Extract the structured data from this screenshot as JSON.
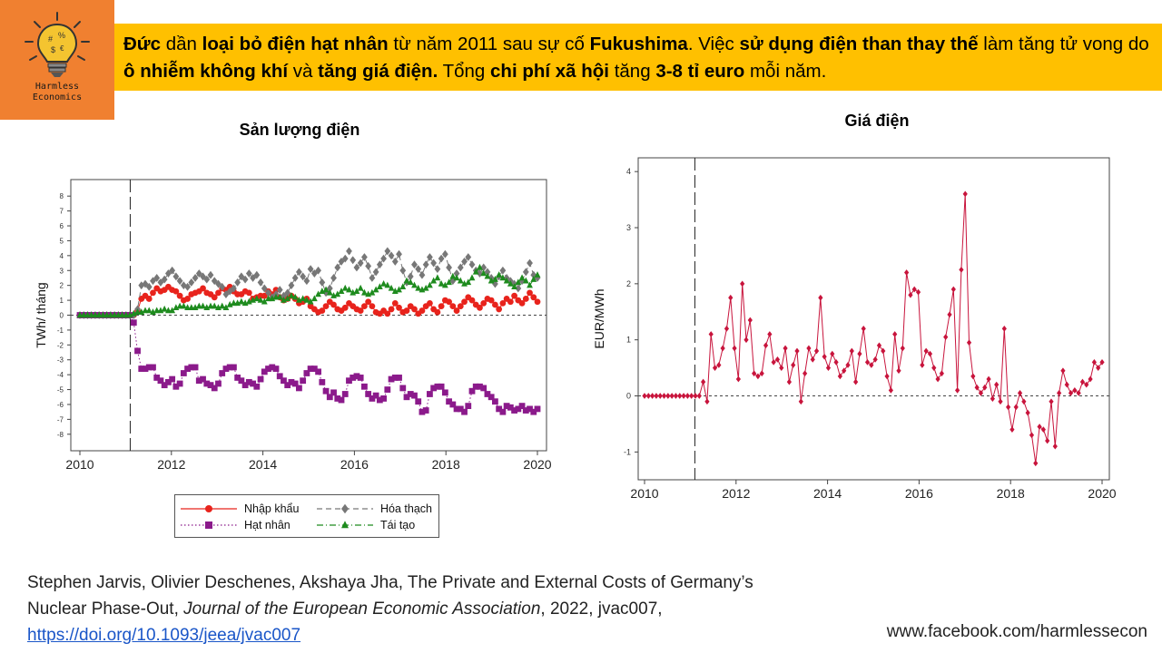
{
  "logo": {
    "line1": "Harmless",
    "line2": "Economics"
  },
  "banner": {
    "segments": [
      {
        "t": "Đức",
        "b": true
      },
      {
        "t": " dần ",
        "b": false
      },
      {
        "t": "loại bỏ điện hạt nhân",
        "b": true
      },
      {
        "t": " từ năm 2011 sau sự cố ",
        "b": false
      },
      {
        "t": "Fukushima",
        "b": true
      },
      {
        "t": ". Việc ",
        "b": false
      },
      {
        "t": "sử dụng điện than thay thế",
        "b": true
      },
      {
        "t": " làm tăng tử vong do ",
        "b": false
      },
      {
        "t": "ô nhiễm không khí",
        "b": true
      },
      {
        "t": " và ",
        "b": false
      },
      {
        "t": "tăng giá điện.",
        "b": true
      },
      {
        "t": " Tổng ",
        "b": false
      },
      {
        "t": "chi phí  xã hội",
        "b": true
      },
      {
        "t": " tăng ",
        "b": false
      },
      {
        "t": "3-8 tỉ euro",
        "b": true
      },
      {
        "t": " mỗi năm.",
        "b": false
      }
    ]
  },
  "citation": {
    "text1": "Stephen Jarvis, Olivier Deschenes, Akshaya Jha, The Private and External Costs of Germany’s Nuclear Phase-Out, ",
    "journal": "Journal of the European Economic Association",
    "text2": ", 2022, jvac007, ",
    "link": "https://doi.org/10.1093/jeea/jvac007"
  },
  "site": "www.facebook.com/harmlessecon",
  "colors": {
    "banner_bg": "#ffc000",
    "logo_bg": "#f08030",
    "import": "#e8231c",
    "fossil": "#777777",
    "nuclear": "#8b1a8b",
    "renewable": "#1e8b1e",
    "price": "#c8143c"
  },
  "chart_data": [
    {
      "type": "line",
      "title": "Sản lượng điện",
      "ylabel": "TWh/ tháng",
      "xlabel": "",
      "xlim": [
        2010,
        2020
      ],
      "ylim": [
        -8.5,
        8.5
      ],
      "x_ticks": [
        "2010",
        "2012",
        "2014",
        "2016",
        "2018",
        "2020"
      ],
      "y_ticks": [
        "8",
        "7",
        "6",
        "5",
        "4",
        "3",
        "2",
        "1",
        "0",
        "-1",
        "-2",
        "-3",
        "-4",
        "-5",
        "-6",
        "-7",
        "-8"
      ],
      "event_line_x": 2011.1,
      "reference_line_y": 0,
      "legend": {
        "position": "bottom"
      },
      "series": [
        {
          "name": "Nhập khẩu",
          "marker": "circle",
          "dash": "solid",
          "values": [
            0,
            0,
            0,
            0,
            0,
            0,
            0,
            0,
            0,
            0,
            0,
            0,
            0,
            0,
            0,
            0.3,
            1.1,
            1.3,
            1.1,
            1.5,
            1.8,
            1.6,
            1.7,
            1.9,
            1.7,
            1.6,
            1.3,
            1.0,
            1.1,
            1.4,
            1.5,
            1.6,
            1.8,
            1.5,
            1.4,
            1.2,
            1.5,
            1.8,
            1.7,
            1.9,
            1.6,
            1.4,
            1.4,
            1.6,
            1.5,
            1.1,
            1.2,
            1.3,
            1.3,
            1.6,
            1.4,
            1.7,
            1.2,
            1.0,
            1.1,
            1.3,
            1.1,
            0.8,
            0.9,
            1.1,
            0.6,
            0.4,
            0.2,
            0.3,
            0.6,
            0.9,
            0.7,
            0.4,
            0.3,
            0.5,
            0.8,
            0.6,
            0.4,
            0.3,
            0.6,
            0.9,
            0.6,
            0.2,
            0.1,
            0.3,
            0.1,
            0.4,
            0.8,
            0.5,
            0.2,
            0.3,
            0.6,
            0.4,
            0.1,
            0.3,
            0.6,
            0.8,
            0.4,
            0.2,
            0.6,
            1.0,
            0.9,
            0.6,
            0.3,
            0.6,
            0.9,
            1.2,
            1.0,
            0.7,
            0.5,
            0.8,
            1.1,
            1.0,
            0.7,
            0.4,
            0.8,
            1.1,
            0.9,
            1.3,
            1.0,
            0.8,
            1.1,
            1.5,
            1.2,
            0.9
          ]
        },
        {
          "name": "Hóa thạch",
          "marker": "diamond",
          "dash": "dashed",
          "values": [
            0,
            0,
            0,
            0,
            0,
            0,
            0,
            0,
            0,
            0,
            0,
            0,
            0,
            0,
            0,
            0.4,
            2.0,
            2.1,
            1.9,
            2.3,
            2.5,
            2.2,
            2.4,
            2.8,
            3.0,
            2.6,
            2.3,
            2.0,
            1.9,
            2.2,
            2.5,
            2.8,
            2.6,
            2.4,
            2.7,
            2.3,
            2.1,
            1.9,
            1.4,
            1.6,
            1.8,
            2.2,
            2.6,
            2.4,
            2.8,
            2.5,
            2.7,
            2.2,
            1.8,
            1.5,
            1.2,
            1.4,
            1.7,
            1.3,
            1.5,
            2.0,
            2.5,
            2.9,
            2.6,
            2.3,
            3.1,
            2.8,
            3.0,
            2.2,
            1.5,
            1.8,
            2.5,
            3.2,
            3.6,
            3.8,
            4.3,
            3.7,
            3.2,
            3.5,
            3.9,
            3.3,
            2.5,
            2.9,
            3.4,
            3.8,
            4.3,
            4.0,
            3.6,
            4.1,
            3.0,
            2.2,
            2.6,
            3.4,
            3.1,
            2.7,
            3.4,
            3.9,
            3.5,
            3.1,
            3.8,
            4.1,
            3.2,
            2.3,
            2.8,
            3.2,
            3.6,
            3.9,
            3.4,
            3.0,
            2.8,
            3.2,
            2.9,
            2.5,
            2.1,
            2.6,
            3.0,
            2.5,
            2.3,
            2.1,
            1.8,
            2.3,
            2.9,
            3.5,
            2.7,
            2.5
          ]
        },
        {
          "name": "Hạt nhân",
          "marker": "square",
          "dash": "dotted",
          "values": [
            0,
            0,
            0,
            0,
            0,
            0,
            0,
            0,
            0,
            0,
            0,
            0,
            0,
            0,
            -0.5,
            -2.4,
            -3.6,
            -3.6,
            -3.5,
            -3.5,
            -4.2,
            -4.4,
            -4.7,
            -4.5,
            -4.3,
            -4.8,
            -4.6,
            -3.9,
            -3.6,
            -3.5,
            -3.5,
            -4.4,
            -4.3,
            -4.6,
            -4.7,
            -4.9,
            -4.6,
            -3.9,
            -3.6,
            -3.5,
            -3.5,
            -4.2,
            -4.4,
            -4.7,
            -4.5,
            -4.6,
            -4.8,
            -4.3,
            -3.8,
            -3.6,
            -3.5,
            -3.6,
            -4.1,
            -4.4,
            -4.7,
            -4.5,
            -4.6,
            -4.9,
            -4.4,
            -3.9,
            -3.6,
            -3.6,
            -3.8,
            -4.5,
            -5.1,
            -5.5,
            -5.2,
            -5.6,
            -5.7,
            -5.3,
            -4.4,
            -4.2,
            -4.1,
            -4.2,
            -4.8,
            -5.3,
            -5.6,
            -5.4,
            -5.7,
            -5.6,
            -5.0,
            -4.3,
            -4.2,
            -4.2,
            -4.9,
            -5.5,
            -5.3,
            -5.4,
            -5.8,
            -6.5,
            -6.4,
            -5.3,
            -4.9,
            -4.8,
            -4.8,
            -5.2,
            -5.8,
            -6.0,
            -6.3,
            -6.3,
            -6.5,
            -6.1,
            -5.1,
            -4.8,
            -4.8,
            -4.9,
            -5.3,
            -5.5,
            -5.8,
            -6.3,
            -6.5,
            -6.1,
            -6.2,
            -6.4,
            -6.3,
            -6.1,
            -6.4,
            -6.3,
            -6.5,
            -6.3
          ]
        },
        {
          "name": "Tái tạo",
          "marker": "triangle",
          "dash": "dashdot",
          "values": [
            0,
            0,
            0,
            0,
            0,
            0,
            0,
            0,
            0,
            0,
            0,
            0,
            0,
            0,
            0.1,
            0.2,
            0.2,
            0.3,
            0.3,
            0.2,
            0.3,
            0.3,
            0.4,
            0.3,
            0.3,
            0.5,
            0.6,
            0.6,
            0.5,
            0.5,
            0.5,
            0.6,
            0.6,
            0.5,
            0.6,
            0.6,
            0.5,
            0.6,
            0.5,
            0.7,
            0.8,
            0.8,
            0.9,
            0.8,
            0.9,
            1.0,
            1.1,
            1.0,
            0.9,
            1.1,
            1.1,
            1.2,
            1.2,
            1.0,
            1.1,
            1.3,
            1.2,
            1.0,
            1.1,
            1.0,
            0.9,
            1.1,
            1.4,
            1.6,
            1.7,
            1.5,
            1.3,
            1.4,
            1.6,
            1.8,
            1.7,
            1.5,
            1.6,
            1.8,
            1.5,
            1.4,
            1.5,
            1.7,
            1.9,
            2.1,
            2.0,
            1.8,
            1.6,
            1.7,
            1.9,
            2.3,
            2.2,
            2.0,
            1.8,
            1.7,
            1.8,
            2.0,
            2.3,
            2.5,
            2.1,
            2.0,
            2.2,
            2.6,
            2.5,
            2.3,
            2.1,
            2.2,
            2.5,
            2.9,
            3.2,
            2.8,
            2.6,
            2.3,
            2.4,
            2.7,
            2.5,
            2.3,
            2.1,
            1.9,
            2.2,
            2.5,
            2.3,
            2.0,
            2.4,
            2.7
          ]
        }
      ]
    },
    {
      "type": "line",
      "title": "Giá điện",
      "ylabel": "EUR/MWh",
      "xlabel": "",
      "xlim": [
        2010,
        2020
      ],
      "ylim": [
        -1.35,
        4.1
      ],
      "x_ticks": [
        "2010",
        "2012",
        "2014",
        "2016",
        "2018",
        "2020"
      ],
      "y_ticks": [
        "4",
        "3",
        "2",
        "1",
        "0",
        "-1"
      ],
      "event_line_x": 2011.1,
      "reference_line_y": 0,
      "series": [
        {
          "name": "",
          "marker": "diamond",
          "dash": "solid",
          "values": [
            0,
            0,
            0,
            0,
            0,
            0,
            0,
            0,
            0,
            0,
            0,
            0,
            0,
            0,
            0,
            0.25,
            -0.1,
            1.1,
            0.5,
            0.55,
            0.85,
            1.2,
            1.75,
            0.85,
            0.3,
            2.0,
            1.0,
            1.35,
            0.4,
            0.35,
            0.4,
            0.9,
            1.1,
            0.6,
            0.65,
            0.5,
            0.85,
            0.25,
            0.55,
            0.8,
            -0.1,
            0.4,
            0.85,
            0.65,
            0.8,
            1.75,
            0.7,
            0.5,
            0.75,
            0.6,
            0.35,
            0.45,
            0.55,
            0.8,
            0.25,
            0.75,
            1.2,
            0.6,
            0.55,
            0.65,
            0.9,
            0.8,
            0.35,
            0.1,
            1.1,
            0.45,
            0.85,
            2.2,
            1.8,
            1.9,
            1.85,
            0.55,
            0.8,
            0.75,
            0.5,
            0.3,
            0.4,
            1.05,
            1.45,
            1.9,
            0.1,
            2.25,
            3.6,
            0.95,
            0.35,
            0.15,
            0.05,
            0.15,
            0.3,
            -0.05,
            0.2,
            -0.1,
            1.2,
            -0.2,
            -0.6,
            -0.2,
            0.05,
            -0.1,
            -0.3,
            -0.7,
            -1.2,
            -0.55,
            -0.6,
            -0.8,
            -0.1,
            -0.9,
            0.05,
            0.45,
            0.2,
            0.05,
            0.1,
            0.05,
            0.25,
            0.2,
            0.3,
            0.6,
            0.5,
            0.6
          ]
        }
      ]
    }
  ]
}
